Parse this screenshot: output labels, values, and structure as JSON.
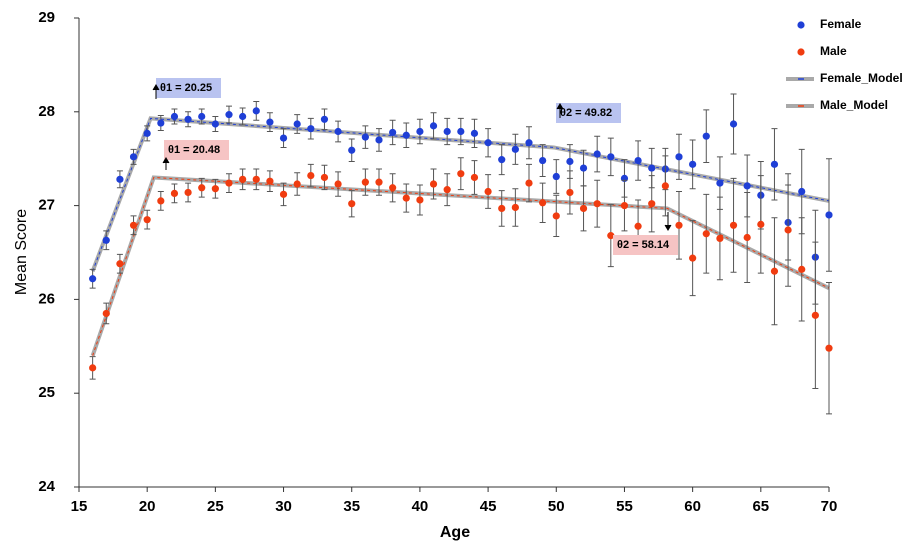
{
  "chart_data": {
    "type": "scatter",
    "x_label": "Age",
    "y_label": "Mean Score",
    "xlim": [
      15,
      70
    ],
    "xticks": [
      15,
      20,
      25,
      30,
      35,
      40,
      45,
      50,
      55,
      60,
      65,
      70
    ],
    "ylim": [
      24,
      29
    ],
    "yticks": [
      24,
      25,
      26,
      27,
      28,
      29
    ],
    "x": [
      16,
      17,
      18,
      19,
      20,
      21,
      22,
      23,
      24,
      25,
      26,
      27,
      28,
      29,
      30,
      31,
      32,
      33,
      34,
      35,
      36,
      37,
      38,
      39,
      40,
      41,
      42,
      43,
      44,
      45,
      46,
      47,
      48,
      49,
      50,
      51,
      52,
      53,
      54,
      55,
      56,
      57,
      58,
      59,
      60,
      61,
      62,
      63,
      64,
      65,
      66,
      67,
      68,
      69,
      70
    ],
    "series": [
      {
        "name": "Female",
        "color": "#1f3fd6",
        "values": [
          26.22,
          26.63,
          27.28,
          27.52,
          27.77,
          27.88,
          27.95,
          27.92,
          27.95,
          27.87,
          27.97,
          27.95,
          28.01,
          27.89,
          27.72,
          27.87,
          27.82,
          27.92,
          27.79,
          27.59,
          27.73,
          27.7,
          27.78,
          27.75,
          27.79,
          27.85,
          27.79,
          27.79,
          27.77,
          27.67,
          27.49,
          27.6,
          27.67,
          27.48,
          27.31,
          27.47,
          27.4,
          27.55,
          27.52,
          27.29,
          27.48,
          27.4,
          27.39,
          27.52,
          27.44,
          27.74,
          27.24,
          27.87,
          27.21,
          27.11,
          27.44,
          26.82,
          27.15,
          26.45,
          26.9
        ],
        "errors": [
          0.1,
          0.1,
          0.09,
          0.08,
          0.08,
          0.08,
          0.08,
          0.08,
          0.08,
          0.08,
          0.09,
          0.09,
          0.1,
          0.1,
          0.1,
          0.1,
          0.11,
          0.11,
          0.11,
          0.12,
          0.12,
          0.12,
          0.13,
          0.13,
          0.13,
          0.14,
          0.14,
          0.14,
          0.15,
          0.15,
          0.16,
          0.16,
          0.17,
          0.17,
          0.18,
          0.18,
          0.19,
          0.19,
          0.2,
          0.2,
          0.21,
          0.21,
          0.22,
          0.24,
          0.26,
          0.28,
          0.28,
          0.32,
          0.33,
          0.36,
          0.38,
          0.4,
          0.45,
          0.5,
          0.6
        ]
      },
      {
        "name": "Male",
        "color": "#f03c10",
        "values": [
          25.27,
          25.85,
          26.38,
          26.79,
          26.85,
          27.05,
          27.13,
          27.14,
          27.19,
          27.18,
          27.24,
          27.28,
          27.28,
          27.26,
          27.12,
          27.23,
          27.32,
          27.3,
          27.23,
          27.02,
          27.25,
          27.25,
          27.19,
          27.08,
          27.06,
          27.23,
          27.17,
          27.34,
          27.3,
          27.15,
          26.97,
          26.98,
          27.24,
          27.03,
          26.89,
          27.14,
          26.97,
          27.02,
          26.68,
          27.0,
          26.78,
          27.02,
          27.21,
          26.79,
          26.44,
          26.7,
          26.65,
          26.79,
          26.66,
          26.8,
          26.3,
          26.74,
          26.32,
          25.83,
          25.48
        ],
        "errors": [
          0.12,
          0.11,
          0.1,
          0.1,
          0.1,
          0.1,
          0.1,
          0.1,
          0.1,
          0.1,
          0.1,
          0.11,
          0.11,
          0.11,
          0.12,
          0.12,
          0.12,
          0.13,
          0.13,
          0.14,
          0.14,
          0.14,
          0.15,
          0.15,
          0.16,
          0.16,
          0.17,
          0.17,
          0.18,
          0.18,
          0.19,
          0.2,
          0.2,
          0.21,
          0.22,
          0.23,
          0.24,
          0.25,
          0.33,
          0.27,
          0.28,
          0.3,
          0.32,
          0.36,
          0.4,
          0.42,
          0.44,
          0.5,
          0.48,
          0.52,
          0.57,
          0.6,
          0.55,
          0.78,
          0.7
        ]
      },
      {
        "name": "Female_Model",
        "type": "line",
        "color": "#a9a9a9",
        "accent": "#1f3fd6",
        "x": [
          16,
          20.25,
          49.82,
          70
        ],
        "values": [
          26.3,
          27.93,
          27.62,
          27.05
        ]
      },
      {
        "name": "Male_Model",
        "type": "line",
        "color": "#a9a9a9",
        "accent": "#f03c10",
        "x": [
          16,
          20.48,
          58.14,
          70
        ],
        "values": [
          25.4,
          27.3,
          26.97,
          26.12
        ]
      }
    ],
    "annotations": [
      "θ1 = 20.25",
      "θ1 = 20.48",
      "θ2 = 49.82",
      "θ2 = 58.14"
    ]
  }
}
